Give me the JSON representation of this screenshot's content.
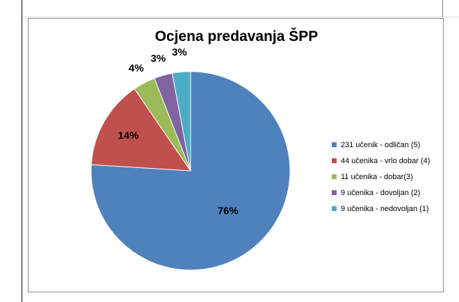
{
  "chart_data": {
    "type": "pie",
    "title": "Ocjena predavanja ŠPP",
    "legend_position": "right",
    "slices": [
      {
        "label": "231 učenik - odličan (5)",
        "value": 231,
        "percent_label": "76%",
        "color": "#4F81BD"
      },
      {
        "label": "44 učenika - vrlo dobar (4)",
        "value": 44,
        "percent_label": "14%",
        "color": "#C0504D"
      },
      {
        "label": "11 učenika - dobar(3)",
        "value": 11,
        "percent_label": "4%",
        "color": "#9BBB59"
      },
      {
        "label": "9 učenika - dovoljan (2)",
        "value": 9,
        "percent_label": "3%",
        "color": "#8064A2"
      },
      {
        "label": "9 učenika - nedovoljan (1)",
        "value": 9,
        "percent_label": "3%",
        "color": "#4BACC6"
      }
    ]
  }
}
